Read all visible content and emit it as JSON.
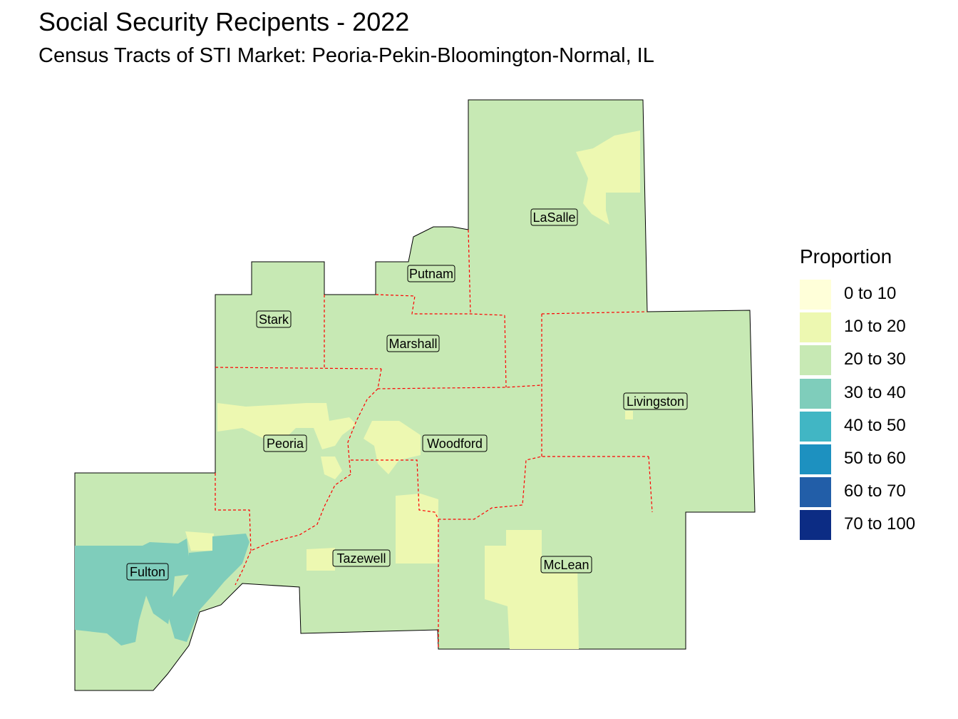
{
  "title": "Social Security Recipents - 2022",
  "subtitle": "Census Tracts of STI Market: Peoria-Pekin-Bloomington-Normal, IL",
  "legend": {
    "title": "Proportion",
    "items": [
      {
        "label": "0 to 10",
        "color": "#ffffd9"
      },
      {
        "label": "10 to 20",
        "color": "#edf8b1"
      },
      {
        "label": "20 to 30",
        "color": "#c7e9b4"
      },
      {
        "label": "30 to 40",
        "color": "#7fcdbb"
      },
      {
        "label": "40 to 50",
        "color": "#41b6c4"
      },
      {
        "label": "50 to 60",
        "color": "#1d91c0"
      },
      {
        "label": "60 to 70",
        "color": "#225ea8"
      },
      {
        "label": "70 to 100",
        "color": "#0c2c84"
      }
    ]
  },
  "counties": [
    {
      "name": "LaSalle",
      "category": "20 to 30"
    },
    {
      "name": "Putnam",
      "category": "20 to 30"
    },
    {
      "name": "Stark",
      "category": "20 to 30"
    },
    {
      "name": "Marshall",
      "category": "20 to 30"
    },
    {
      "name": "Livingston",
      "category": "20 to 30"
    },
    {
      "name": "Peoria",
      "category": "20 to 30"
    },
    {
      "name": "Woodford",
      "category": "20 to 30"
    },
    {
      "name": "Fulton",
      "category": "30 to 40"
    },
    {
      "name": "Tazewell",
      "category": "20 to 30"
    },
    {
      "name": "McLean",
      "category": "20 to 30"
    }
  ],
  "colors": {
    "county_border": "#ff0000",
    "outline": "#000000"
  }
}
